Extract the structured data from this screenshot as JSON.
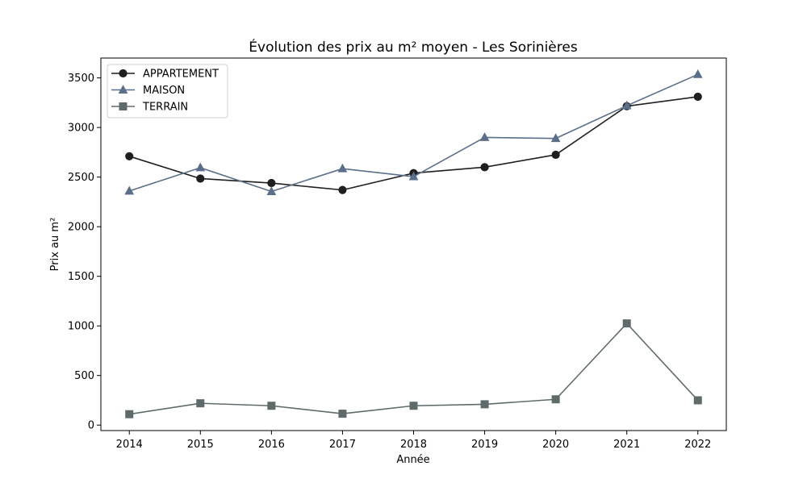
{
  "chart_data": {
    "type": "line",
    "title": "Évolution des prix au m² moyen - Les Sorinières",
    "xlabel": "Année",
    "ylabel": "Prix au m²",
    "x": [
      2014,
      2015,
      2016,
      2017,
      2018,
      2019,
      2020,
      2021,
      2022
    ],
    "xticks": [
      "2014",
      "2015",
      "2016",
      "2017",
      "2018",
      "2019",
      "2020",
      "2021",
      "2022"
    ],
    "yticks": [
      0,
      500,
      1000,
      1500,
      2000,
      2500,
      3000,
      3500
    ],
    "ylim": [
      -55,
      3700
    ],
    "xlim": [
      2013.6,
      2022.4
    ],
    "grid": false,
    "legend_position": "top-left",
    "series": [
      {
        "name": "APPARTEMENT",
        "color": "#1f1f1f",
        "marker": "circle",
        "values": [
          2710,
          2485,
          2440,
          2370,
          2540,
          2600,
          2725,
          3215,
          3310
        ]
      },
      {
        "name": "MAISON",
        "color": "#5b6f8a",
        "marker": "triangle",
        "values": [
          2360,
          2595,
          2355,
          2585,
          2505,
          2900,
          2890,
          3220,
          3535
        ]
      },
      {
        "name": "TERRAIN",
        "color": "#5f6b6b",
        "marker": "square",
        "values": [
          110,
          220,
          195,
          115,
          195,
          210,
          260,
          1025,
          250
        ]
      }
    ]
  }
}
